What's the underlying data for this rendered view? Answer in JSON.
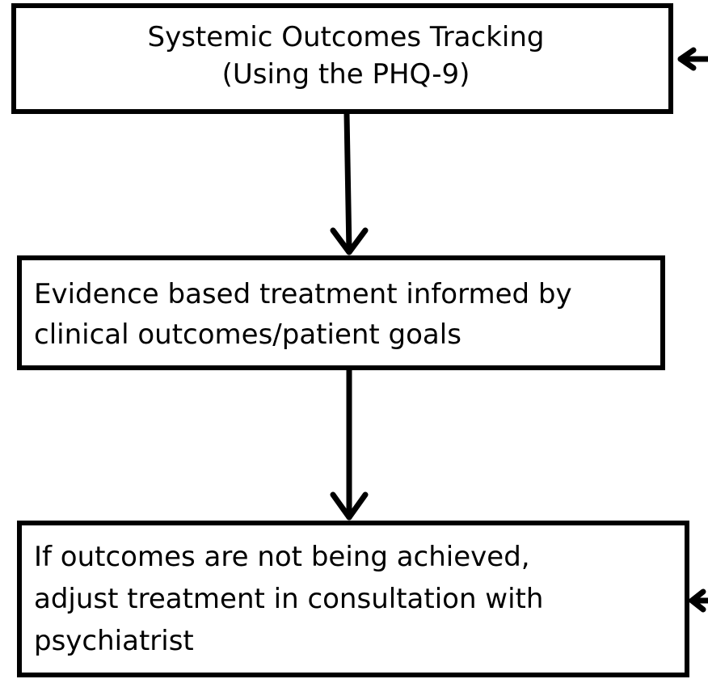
{
  "nodes": [
    {
      "lines": [
        "Systemic Outcomes Tracking",
        "(Using the PHQ-9)"
      ]
    },
    {
      "lines": [
        "Evidence based treatment informed by",
        "clinical outcomes/patient goals"
      ]
    },
    {
      "lines": [
        "If outcomes are not being achieved,",
        "adjust treatment in consultation with",
        "psychiatrist"
      ]
    }
  ]
}
